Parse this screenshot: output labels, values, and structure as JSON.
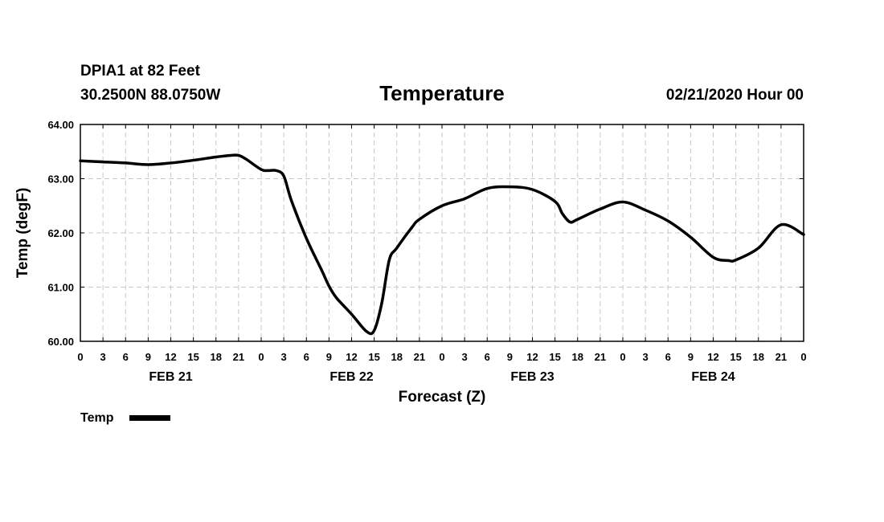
{
  "header": {
    "station": "DPIA1 at 82 Feet",
    "coords": "30.2500N 88.0750W",
    "title": "Temperature",
    "run": "02/21/2020 Hour 00"
  },
  "chart_data": {
    "type": "line",
    "title": "Temperature",
    "xlabel": "Forecast (Z)",
    "ylabel": "Temp (degF)",
    "xlim": [
      0,
      96
    ],
    "ylim": [
      60.0,
      64.0
    ],
    "grid": true,
    "x_ticks": [
      0,
      3,
      6,
      9,
      12,
      15,
      18,
      21,
      24,
      27,
      30,
      33,
      36,
      39,
      42,
      45,
      48,
      51,
      54,
      57,
      60,
      63,
      66,
      69,
      72,
      75,
      78,
      81,
      84,
      87,
      90,
      93,
      96
    ],
    "x_tick_labels": [
      "0",
      "3",
      "6",
      "9",
      "12",
      "15",
      "18",
      "21",
      "0",
      "3",
      "6",
      "9",
      "12",
      "15",
      "18",
      "21",
      "0",
      "3",
      "6",
      "9",
      "12",
      "15",
      "18",
      "21",
      "0",
      "3",
      "6",
      "9",
      "12",
      "15",
      "18",
      "21",
      "0"
    ],
    "y_ticks": [
      60.0,
      61.0,
      62.0,
      63.0,
      64.0
    ],
    "y_tick_labels": [
      "60.00",
      "61.00",
      "62.00",
      "63.00",
      "64.00"
    ],
    "day_labels": [
      {
        "label": "FEB 21",
        "x": 12
      },
      {
        "label": "FEB 22",
        "x": 36
      },
      {
        "label": "FEB 23",
        "x": 60
      },
      {
        "label": "FEB 24",
        "x": 84
      }
    ],
    "legend": {
      "position": "bottom-left",
      "label": "Temp"
    },
    "series": [
      {
        "name": "Temp",
        "color": "#000000",
        "x": [
          0,
          3,
          6,
          9,
          12,
          15,
          18,
          20,
          21,
          22,
          24,
          25,
          26,
          27,
          28,
          30,
          32,
          33,
          34,
          36,
          38,
          39,
          40,
          41,
          42,
          44,
          45,
          48,
          51,
          54,
          57,
          60,
          63,
          64,
          65,
          66,
          69,
          72,
          75,
          78,
          81,
          84,
          86,
          87,
          90,
          93,
          96
        ],
        "values": [
          63.33,
          63.31,
          63.29,
          63.26,
          63.29,
          63.34,
          63.4,
          63.43,
          63.43,
          63.36,
          63.17,
          63.15,
          63.15,
          63.05,
          62.6,
          61.9,
          61.32,
          61.02,
          60.8,
          60.5,
          60.18,
          60.2,
          60.7,
          61.5,
          61.72,
          62.1,
          62.25,
          62.5,
          62.63,
          62.82,
          62.85,
          62.8,
          62.58,
          62.35,
          62.2,
          62.25,
          62.44,
          62.57,
          62.42,
          62.22,
          61.92,
          61.55,
          61.49,
          61.5,
          61.72,
          62.15,
          61.97
        ]
      }
    ]
  }
}
